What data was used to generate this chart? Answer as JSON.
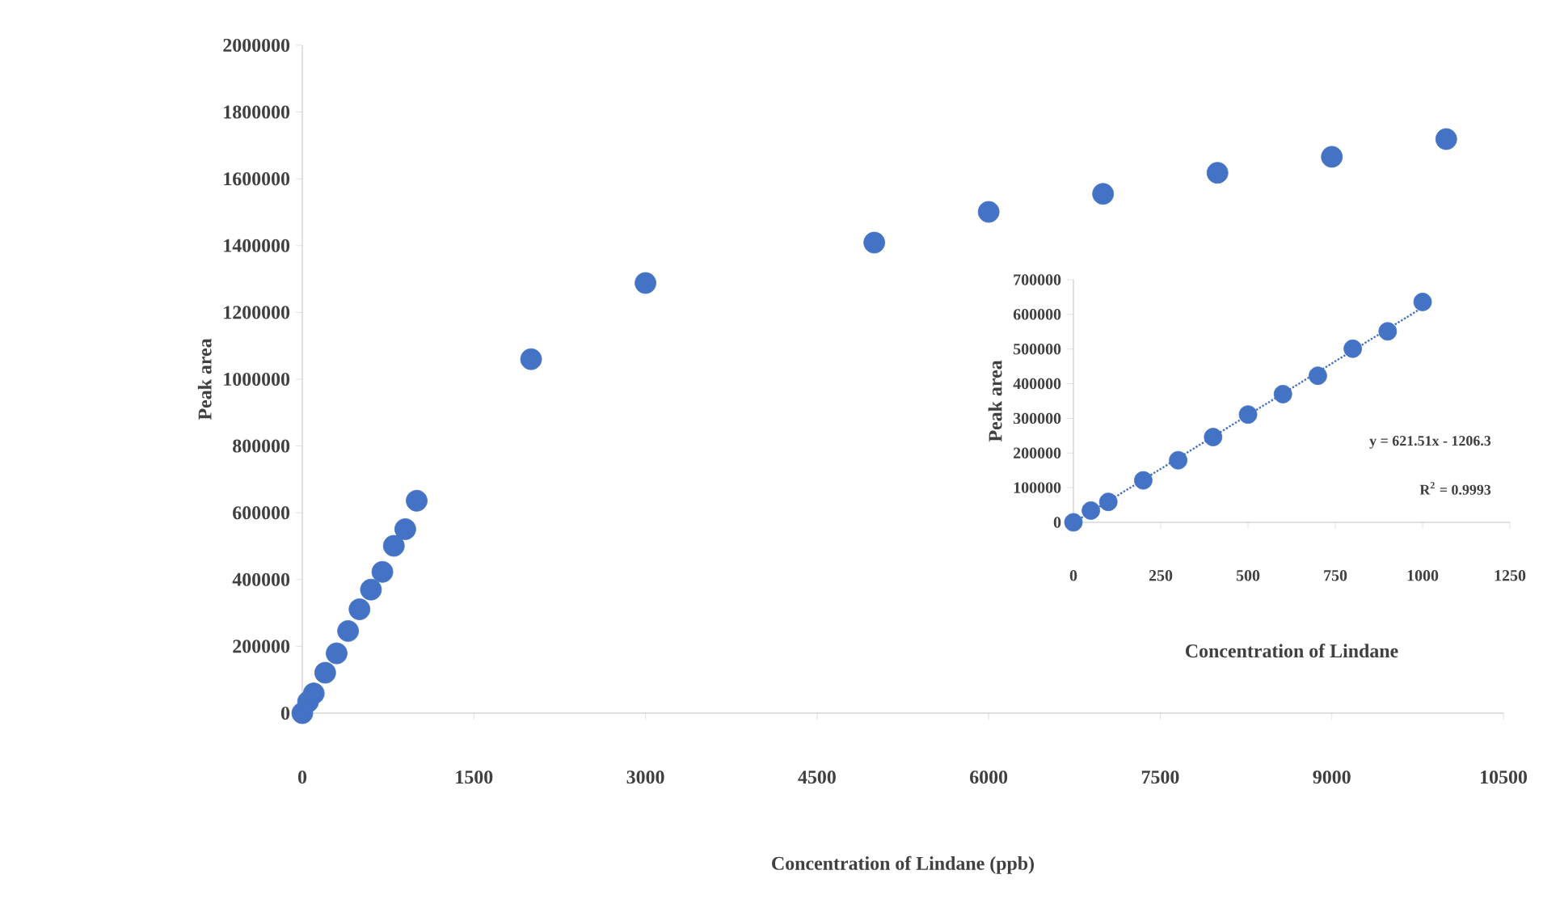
{
  "chart_data": [
    {
      "type": "scatter",
      "xlabel": "Concentration of Lindane (ppb)",
      "ylabel": "Peak area",
      "xlim": [
        0,
        10500
      ],
      "ylim": [
        0,
        2000000
      ],
      "xticks": [
        0,
        1500,
        3000,
        4500,
        6000,
        7500,
        9000,
        10500
      ],
      "yticks": [
        0,
        200000,
        400000,
        600000,
        800000,
        1000000,
        1200000,
        1400000,
        1600000,
        1800000,
        2000000
      ],
      "grid": false,
      "series": [
        {
          "color": "#4472c4",
          "marker": "circle",
          "x": [
            0,
            50,
            100,
            200,
            300,
            400,
            500,
            600,
            700,
            800,
            900,
            1000,
            2000,
            3000,
            5000,
            6000,
            7000,
            8000,
            9000,
            10000
          ],
          "values": [
            0,
            34000,
            59000,
            121000,
            179000,
            246000,
            311000,
            370000,
            423000,
            501000,
            551000,
            636000,
            1060000,
            1288000,
            1409000,
            1501000,
            1555000,
            1618000,
            1666000,
            1719000
          ]
        }
      ]
    },
    {
      "type": "scatter",
      "xlabel": "Concentration of Lindane",
      "ylabel": "Peak area",
      "xlim": [
        0,
        1250
      ],
      "ylim": [
        0,
        700000
      ],
      "xticks": [
        0,
        250,
        500,
        750,
        1000,
        1250
      ],
      "yticks": [
        0,
        100000,
        200000,
        300000,
        400000,
        500000,
        600000,
        700000
      ],
      "grid": false,
      "annotations": [
        "y = 621.51x - 1206.3",
        "R$^{2}$ = 0.9993"
      ],
      "series": [
        {
          "color": "#4472c4",
          "marker": "circle",
          "x": [
            0,
            50,
            100,
            200,
            300,
            400,
            500,
            600,
            700,
            800,
            900,
            1000
          ],
          "values": [
            0,
            34000,
            59000,
            121000,
            179000,
            246000,
            311000,
            370000,
            423000,
            501000,
            551000,
            636000
          ]
        },
        {
          "type": "line",
          "color": "#4472c4",
          "line_style": "dotted",
          "marker": "none",
          "x": [
            5,
            1000
          ],
          "values": [
            2000,
            620000
          ]
        }
      ]
    }
  ]
}
